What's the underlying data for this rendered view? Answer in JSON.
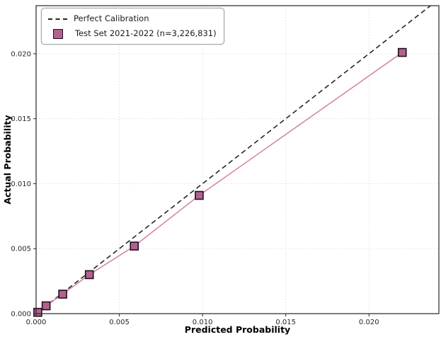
{
  "chart_data": {
    "type": "line",
    "title": "",
    "xlabel": "Predicted Probability",
    "ylabel": "Actual Probability",
    "xlim": [
      0,
      0.0242
    ],
    "ylim": [
      0,
      0.0237
    ],
    "grid": true,
    "legend_position": "upper-left",
    "xticks": [
      {
        "value": 0.0,
        "label": "0.000"
      },
      {
        "value": 0.005,
        "label": "0.005"
      },
      {
        "value": 0.01,
        "label": "0.010"
      },
      {
        "value": 0.015,
        "label": "0.015"
      },
      {
        "value": 0.02,
        "label": "0.020"
      }
    ],
    "yticks": [
      {
        "value": 0.0,
        "label": "0.000"
      },
      {
        "value": 0.005,
        "label": "0.005"
      },
      {
        "value": 0.01,
        "label": "0.010"
      },
      {
        "value": 0.015,
        "label": "0.015"
      },
      {
        "value": 0.02,
        "label": "0.020"
      }
    ],
    "series": [
      {
        "name": "Perfect Calibration",
        "style": "dashed",
        "color": "#262626",
        "points": [
          [
            0,
            0
          ],
          [
            0.0237,
            0.0237
          ]
        ]
      },
      {
        "name": "Test Set 2021-2022 (n=3,226,831)",
        "style": "solid-with-square-markers",
        "line_color": "#d687ab",
        "marker_fill": "#b4618f",
        "marker_edge": "#20101e",
        "points": [
          [
            0.0001,
            0.0001
          ],
          [
            0.0006,
            0.0006
          ],
          [
            0.0016,
            0.0015
          ],
          [
            0.0032,
            0.003
          ],
          [
            0.0059,
            0.0052
          ],
          [
            0.0098,
            0.0091
          ],
          [
            0.022,
            0.0201
          ]
        ]
      }
    ],
    "colors": {
      "grid": "#dadada",
      "axis": "#262626",
      "tick_text": "#262626",
      "label_text": "#000000",
      "background": "#ffffff"
    }
  }
}
